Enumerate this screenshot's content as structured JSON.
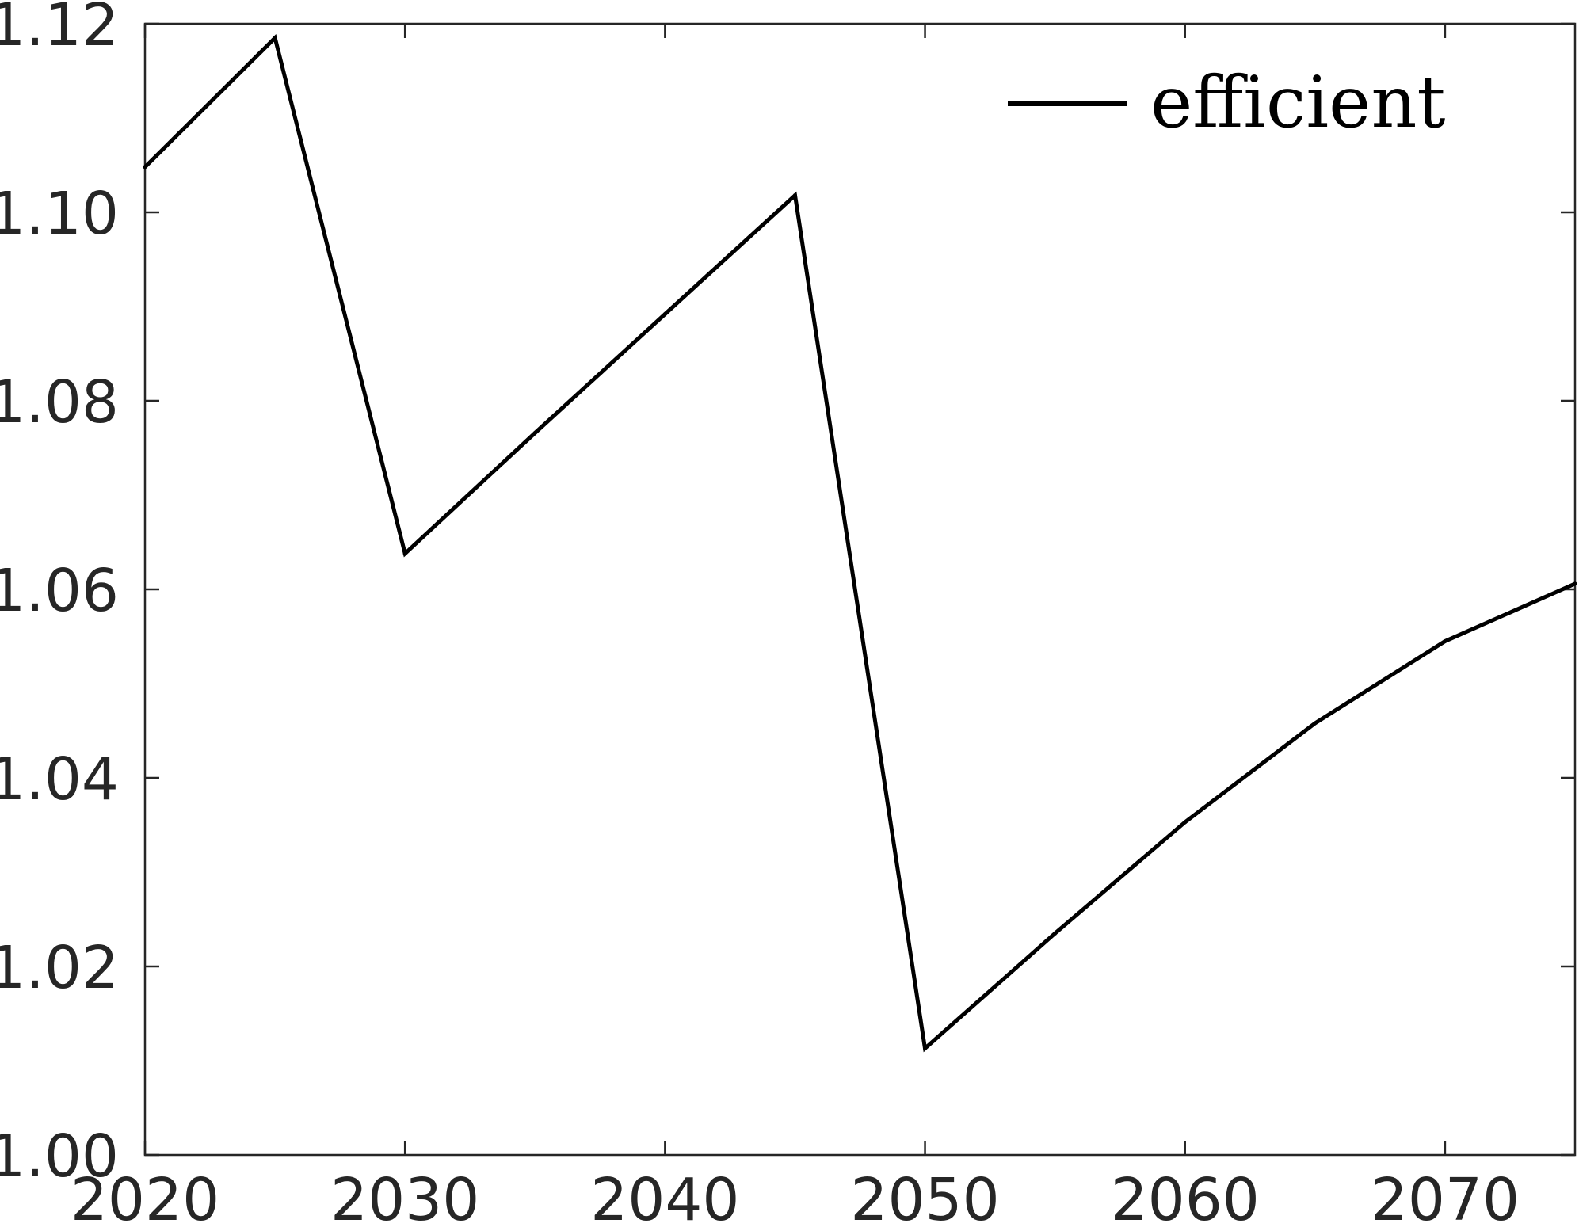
{
  "chart_data": {
    "type": "line",
    "title": "",
    "xlabel": "",
    "ylabel": "",
    "xlim": [
      2020,
      2075
    ],
    "ylim": [
      1.0,
      1.12
    ],
    "xticks": [
      2020,
      2030,
      2040,
      2050,
      2060,
      2070
    ],
    "yticks": [
      1.0,
      1.02,
      1.04,
      1.06,
      1.08,
      1.1,
      1.12
    ],
    "xtick_labels": [
      "2020",
      "2030",
      "2040",
      "2050",
      "2060",
      "2070"
    ],
    "ytick_labels": [
      "1.00",
      "1.02",
      "1.04",
      "1.06",
      "1.08",
      "1.10",
      "1.12"
    ],
    "grid": false,
    "legend_position": "top-right",
    "series": [
      {
        "name": "efficient",
        "color": "#000000",
        "x": [
          2020,
          2025,
          2030,
          2035,
          2040,
          2045,
          2050,
          2055,
          2060,
          2065,
          2070,
          2075
        ],
        "y": [
          1.1048,
          1.1185,
          1.0638,
          1.0766,
          1.0892,
          1.1018,
          1.0113,
          1.0235,
          1.0353,
          1.0458,
          1.0545,
          1.0606
        ]
      }
    ]
  }
}
